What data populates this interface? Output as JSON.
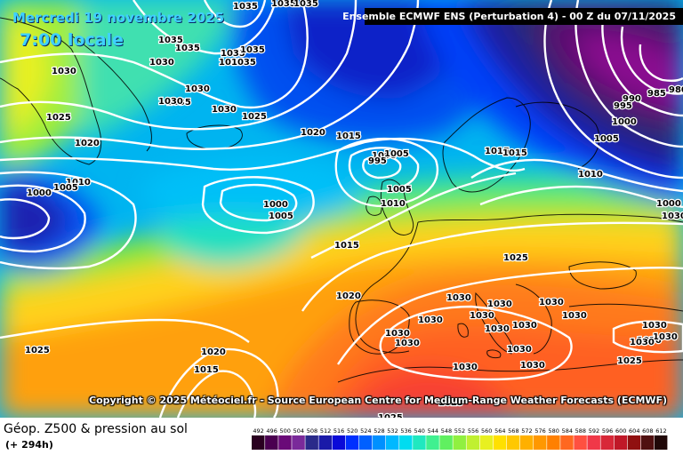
{
  "header": {
    "date": "Mercredi 19 novembre 2025",
    "local_time": "7:00 locale",
    "model_run": "Ensemble ECMWF ENS  (Perturbation 4)  -  00 Z du 07/11/2025"
  },
  "copyright": "Copyright © 2025 Météociel.fr - Source European Centre for Medium-Range Weather Forecasts (ECMWF)",
  "footer": {
    "product": "Géop. Z500 & pression au sol",
    "lead_time": "(+ 294h)"
  },
  "legend": {
    "labels": [
      "492",
      "496",
      "500",
      "504",
      "508",
      "512",
      "516",
      "520",
      "524",
      "528",
      "532",
      "536",
      "540",
      "544",
      "548",
      "552",
      "556",
      "560",
      "564",
      "568",
      "572",
      "576",
      "580",
      "584",
      "588",
      "592",
      "596",
      "600",
      "604",
      "608",
      "612"
    ],
    "colors": [
      "#2a0020",
      "#4a0050",
      "#6a0a78",
      "#7a2a9a",
      "#2a2a8a",
      "#1a1aa8",
      "#0a0ad8",
      "#0030ff",
      "#0060ff",
      "#0090ff",
      "#00b8ff",
      "#00dcf0",
      "#20e8c0",
      "#40f090",
      "#60f060",
      "#90f040",
      "#c0f030",
      "#e8f020",
      "#ffe000",
      "#ffc800",
      "#ffb000",
      "#ff9800",
      "#ff8000",
      "#ff6820",
      "#ff5040",
      "#f03848",
      "#d82838",
      "#c01828",
      "#901010",
      "#501010",
      "#200808"
    ]
  },
  "isobar_labels": [
    {
      "text": "1035"
    },
    {
      "text": "1035"
    },
    {
      "text": "1035"
    },
    {
      "text": "1035"
    },
    {
      "text": "1035"
    },
    {
      "text": "1035"
    },
    {
      "text": "1035"
    },
    {
      "text": "1035"
    },
    {
      "text": "1035"
    },
    {
      "text": "1035"
    },
    {
      "text": "1030"
    },
    {
      "text": "1030"
    },
    {
      "text": "1030"
    },
    {
      "text": "1030"
    },
    {
      "text": "1030"
    },
    {
      "text": "1025"
    },
    {
      "text": "1025"
    },
    {
      "text": "1020"
    },
    {
      "text": "1020"
    },
    {
      "text": "1015"
    },
    {
      "text": "1015"
    },
    {
      "text": "1010"
    },
    {
      "text": "1005"
    },
    {
      "text": "1000"
    },
    {
      "text": "1005"
    },
    {
      "text": "1000"
    },
    {
      "text": "1005"
    },
    {
      "text": "1000"
    },
    {
      "text": "995"
    },
    {
      "text": "1005"
    },
    {
      "text": "1010"
    },
    {
      "text": "1015"
    },
    {
      "text": "1015"
    },
    {
      "text": "1020"
    },
    {
      "text": "1025"
    },
    {
      "text": "1030"
    },
    {
      "text": "1030"
    },
    {
      "text": "1030"
    },
    {
      "text": "1030"
    },
    {
      "text": "1030"
    },
    {
      "text": "1030"
    },
    {
      "text": "1030"
    },
    {
      "text": "1030"
    },
    {
      "text": "1030"
    },
    {
      "text": "1030"
    },
    {
      "text": "1030"
    },
    {
      "text": "1030"
    },
    {
      "text": "1030"
    },
    {
      "text": "1030"
    },
    {
      "text": "1025"
    },
    {
      "text": "1025"
    },
    {
      "text": "1025"
    },
    {
      "text": "1020"
    },
    {
      "text": "1015"
    },
    {
      "text": "1025"
    },
    {
      "text": "1010"
    },
    {
      "text": "1005"
    },
    {
      "text": "1000"
    },
    {
      "text": "995"
    },
    {
      "text": "990"
    },
    {
      "text": "985"
    },
    {
      "text": "980"
    },
    {
      "text": "1000"
    },
    {
      "text": "1030"
    },
    {
      "text": "1030"
    },
    {
      "text": "1030"
    },
    {
      "text": "1030"
    }
  ]
}
